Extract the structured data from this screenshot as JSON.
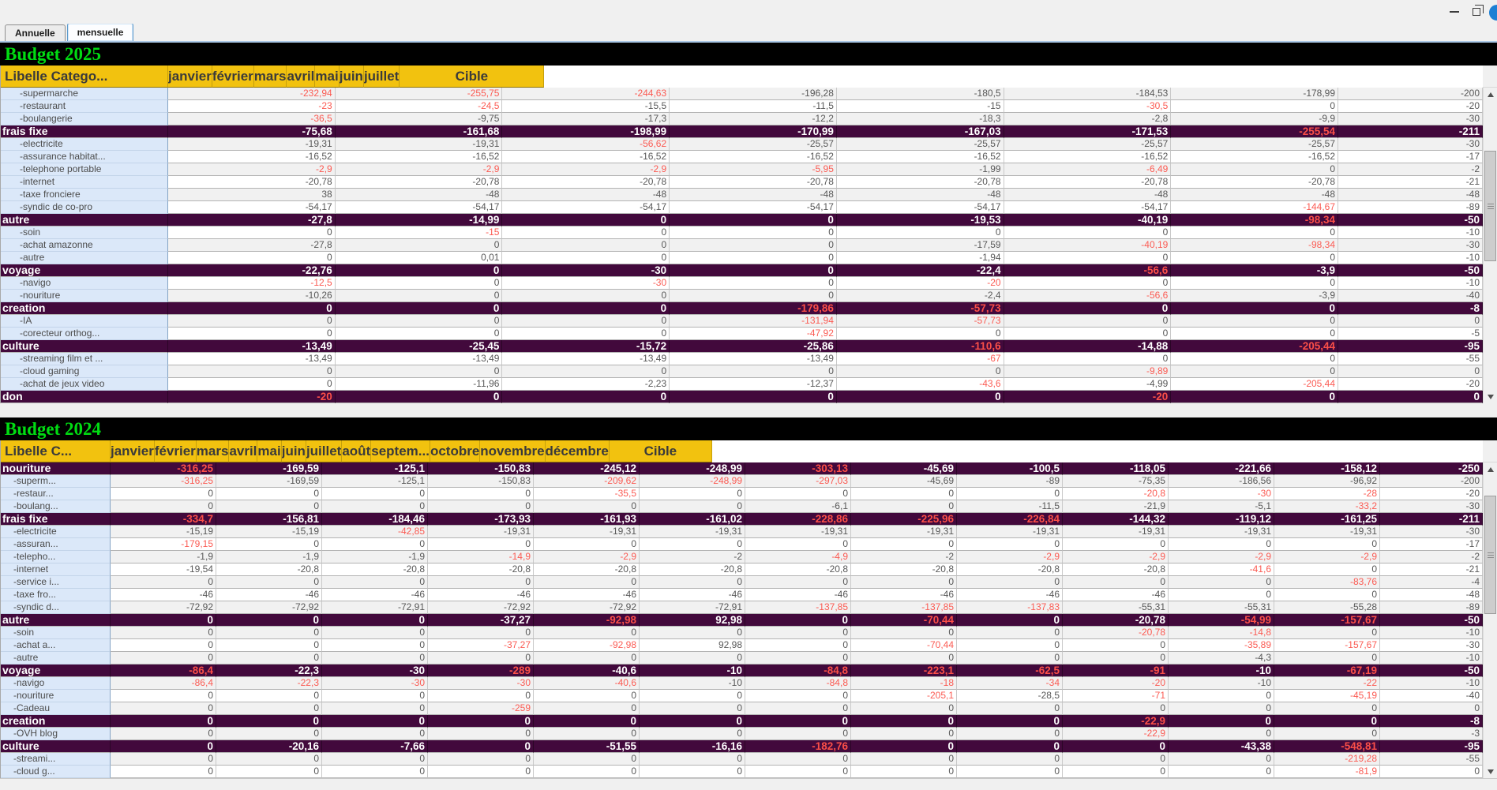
{
  "note_value_format": "cell values prefixed with ! are rendered in alert red",
  "window_controls": {
    "minimize": "minimize",
    "restore": "restore"
  },
  "tabs": [
    {
      "label": "Annuelle",
      "selected": false
    },
    {
      "label": "mensuelle",
      "selected": true
    }
  ],
  "colors": {
    "header_yellow": "#f2c20f",
    "category_purple": "#42093c",
    "alert_red": "#fb5b53",
    "title_green": "#00dc12",
    "label_blue": "#dbe8f9",
    "band_black": "#000000"
  },
  "tables": [
    {
      "title": "Budget 2025",
      "zebra": 0,
      "columns": [
        "Libelle Catego...",
        "janvier",
        "février",
        "mars",
        "avril",
        "mai",
        "juin",
        "juillet",
        "Cible"
      ],
      "rows": [
        {
          "label": "-supermarche",
          "values": [
            "!-232,94",
            "!-255,75",
            "!-244,63",
            "-196,28",
            "-180,5",
            "-184,53",
            "-178,99",
            "-200"
          ]
        },
        {
          "label": "-restaurant",
          "values": [
            "!-23",
            "!-24,5",
            "-15,5",
            "-11,5",
            "-15",
            "!-30,5",
            "0",
            "-20"
          ]
        },
        {
          "label": "-boulangerie",
          "values": [
            "!-36,5",
            "-9,75",
            "-17,3",
            "-12,2",
            "-18,3",
            "-2,8",
            "-9,9",
            "-30"
          ]
        },
        {
          "label": "frais fixe",
          "cat": true,
          "values": [
            "-75,68",
            "-161,68",
            "-198,99",
            "-170,99",
            "-167,03",
            "-171,53",
            "!-255,54",
            "-211"
          ]
        },
        {
          "label": "-electricite",
          "values": [
            "-19,31",
            "-19,31",
            "!-56,62",
            "-25,57",
            "-25,57",
            "-25,57",
            "-25,57",
            "-30"
          ]
        },
        {
          "label": "-assurance habitat...",
          "values": [
            "-16,52",
            "-16,52",
            "-16,52",
            "-16,52",
            "-16,52",
            "-16,52",
            "-16,52",
            "-17"
          ]
        },
        {
          "label": "-telephone portable",
          "values": [
            "!-2,9",
            "!-2,9",
            "!-2,9",
            "!-5,95",
            "-1,99",
            "!-6,49",
            "0",
            "-2"
          ]
        },
        {
          "label": "-internet",
          "values": [
            "-20,78",
            "-20,78",
            "-20,78",
            "-20,78",
            "-20,78",
            "-20,78",
            "-20,78",
            "-21"
          ]
        },
        {
          "label": "-taxe fronciere",
          "values": [
            "38",
            "-48",
            "-48",
            "-48",
            "-48",
            "-48",
            "-48",
            "-48"
          ]
        },
        {
          "label": "-syndic de co-pro",
          "values": [
            "-54,17",
            "-54,17",
            "-54,17",
            "-54,17",
            "-54,17",
            "-54,17",
            "!-144,67",
            "-89"
          ]
        },
        {
          "label": "autre",
          "cat": true,
          "values": [
            "-27,8",
            "-14,99",
            "0",
            "0",
            "-19,53",
            "-40,19",
            "!-98,34",
            "-50"
          ]
        },
        {
          "label": "-soin",
          "values": [
            "0",
            "!-15",
            "0",
            "0",
            "0",
            "0",
            "0",
            "-10"
          ]
        },
        {
          "label": "-achat amazonne",
          "values": [
            "-27,8",
            "0",
            "0",
            "0",
            "-17,59",
            "!-40,19",
            "!-98,34",
            "-30"
          ]
        },
        {
          "label": "-autre",
          "values": [
            "0",
            "0,01",
            "0",
            "0",
            "-1,94",
            "0",
            "0",
            "-10"
          ]
        },
        {
          "label": "voyage",
          "cat": true,
          "values": [
            "-22,76",
            "0",
            "-30",
            "0",
            "-22,4",
            "!-56,6",
            "-3,9",
            "-50"
          ]
        },
        {
          "label": "-navigo",
          "values": [
            "!-12,5",
            "0",
            "!-30",
            "0",
            "!-20",
            "0",
            "0",
            "-10"
          ]
        },
        {
          "label": "-nouriture",
          "values": [
            "-10,26",
            "0",
            "0",
            "0",
            "-2,4",
            "!-56,6",
            "-3,9",
            "-40"
          ]
        },
        {
          "label": "creation",
          "cat": true,
          "values": [
            "0",
            "0",
            "0",
            "!-179,86",
            "!-57,73",
            "0",
            "0",
            "-8"
          ]
        },
        {
          "label": "-IA",
          "values": [
            "0",
            "0",
            "0",
            "!-131,94",
            "!-57,73",
            "0",
            "0",
            "0"
          ]
        },
        {
          "label": "-corecteur orthog...",
          "values": [
            "0",
            "0",
            "0",
            "!-47,92",
            "0",
            "0",
            "0",
            "-5"
          ]
        },
        {
          "label": "culture",
          "cat": true,
          "values": [
            "-13,49",
            "-25,45",
            "-15,72",
            "-25,86",
            "!-110,6",
            "-14,88",
            "!-205,44",
            "-95"
          ]
        },
        {
          "label": "-streaming film et ...",
          "values": [
            "-13,49",
            "-13,49",
            "-13,49",
            "-13,49",
            "!-67",
            "0",
            "0",
            "-55"
          ]
        },
        {
          "label": "-cloud gaming",
          "values": [
            "0",
            "0",
            "0",
            "0",
            "0",
            "!-9,89",
            "0",
            "0"
          ]
        },
        {
          "label": "-achat de jeux video",
          "values": [
            "0",
            "-11,96",
            "-2,23",
            "-12,37",
            "!-43,6",
            "-4,99",
            "!-205,44",
            "-20"
          ]
        },
        {
          "label": "don",
          "cat": true,
          "values": [
            "!-20",
            "0",
            "0",
            "0",
            "0",
            "!-20",
            "0",
            "0"
          ]
        }
      ]
    },
    {
      "title": "Budget 2024",
      "zebra": 1,
      "columns": [
        "Libelle C...",
        "janvier",
        "février",
        "mars",
        "avril",
        "mai",
        "juin",
        "juillet",
        "août",
        "septem...",
        "octobre",
        "novembre",
        "décembre",
        "Cible"
      ],
      "rows": [
        {
          "label": "nouriture",
          "cat": true,
          "values": [
            "!-316,25",
            "-169,59",
            "-125,1",
            "-150,83",
            "-245,12",
            "-248,99",
            "!-303,13",
            "-45,69",
            "-100,5",
            "-118,05",
            "-221,66",
            "-158,12",
            "-250"
          ]
        },
        {
          "label": "-superm...",
          "values": [
            "!-316,25",
            "-169,59",
            "-125,1",
            "-150,83",
            "!-209,62",
            "!-248,99",
            "!-297,03",
            "-45,69",
            "-89",
            "-75,35",
            "-186,56",
            "-96,92",
            "-200"
          ]
        },
        {
          "label": "-restaur...",
          "values": [
            "0",
            "0",
            "0",
            "0",
            "!-35,5",
            "0",
            "0",
            "0",
            "0",
            "!-20,8",
            "!-30",
            "!-28",
            "-20"
          ]
        },
        {
          "label": "-boulang...",
          "values": [
            "0",
            "0",
            "0",
            "0",
            "0",
            "0",
            "-6,1",
            "0",
            "-11,5",
            "-21,9",
            "-5,1",
            "!-33,2",
            "-30"
          ]
        },
        {
          "label": "frais fixe",
          "cat": true,
          "values": [
            "!-334,7",
            "-156,81",
            "-184,46",
            "-173,93",
            "-161,93",
            "-161,02",
            "!-228,86",
            "!-225,96",
            "!-226,84",
            "-144,32",
            "-119,12",
            "-161,25",
            "-211"
          ]
        },
        {
          "label": "-electricite",
          "values": [
            "-15,19",
            "-15,19",
            "!-42,85",
            "-19,31",
            "-19,31",
            "-19,31",
            "-19,31",
            "-19,31",
            "-19,31",
            "-19,31",
            "-19,31",
            "-19,31",
            "-30"
          ]
        },
        {
          "label": "-assuran...",
          "values": [
            "!-179,15",
            "0",
            "0",
            "0",
            "0",
            "0",
            "0",
            "0",
            "0",
            "0",
            "0",
            "0",
            "-17"
          ]
        },
        {
          "label": "-telepho...",
          "values": [
            "-1,9",
            "-1,9",
            "-1,9",
            "!-14,9",
            "!-2,9",
            "-2",
            "!-4,9",
            "-2",
            "!-2,9",
            "!-2,9",
            "!-2,9",
            "!-2,9",
            "-2"
          ]
        },
        {
          "label": "-internet",
          "values": [
            "-19,54",
            "-20,8",
            "-20,8",
            "-20,8",
            "-20,8",
            "-20,8",
            "-20,8",
            "-20,8",
            "-20,8",
            "-20,8",
            "!-41,6",
            "0",
            "-21"
          ]
        },
        {
          "label": "-service i...",
          "values": [
            "0",
            "0",
            "0",
            "0",
            "0",
            "0",
            "0",
            "0",
            "0",
            "0",
            "0",
            "!-83,76",
            "-4"
          ]
        },
        {
          "label": "-taxe fro...",
          "values": [
            "-46",
            "-46",
            "-46",
            "-46",
            "-46",
            "-46",
            "-46",
            "-46",
            "-46",
            "-46",
            "0",
            "0",
            "-48"
          ]
        },
        {
          "label": "-syndic d...",
          "values": [
            "-72,92",
            "-72,92",
            "-72,91",
            "-72,92",
            "-72,92",
            "-72,91",
            "!-137,85",
            "!-137,85",
            "!-137,83",
            "-55,31",
            "-55,31",
            "-55,28",
            "-89"
          ]
        },
        {
          "label": "autre",
          "cat": true,
          "values": [
            "0",
            "0",
            "0",
            "-37,27",
            "!-92,98",
            "92,98",
            "0",
            "!-70,44",
            "0",
            "-20,78",
            "!-54,99",
            "!-157,67",
            "-50"
          ]
        },
        {
          "label": "-soin",
          "values": [
            "0",
            "0",
            "0",
            "0",
            "0",
            "0",
            "0",
            "0",
            "0",
            "!-20,78",
            "!-14,8",
            "0",
            "-10"
          ]
        },
        {
          "label": "-achat a...",
          "values": [
            "0",
            "0",
            "0",
            "!-37,27",
            "!-92,98",
            "92,98",
            "0",
            "!-70,44",
            "0",
            "0",
            "!-35,89",
            "!-157,67",
            "-30"
          ]
        },
        {
          "label": "-autre",
          "values": [
            "0",
            "0",
            "0",
            "0",
            "0",
            "0",
            "0",
            "0",
            "0",
            "0",
            "-4,3",
            "0",
            "-10"
          ]
        },
        {
          "label": "voyage",
          "cat": true,
          "values": [
            "!-86,4",
            "-22,3",
            "-30",
            "!-289",
            "-40,6",
            "-10",
            "!-84,8",
            "!-223,1",
            "!-62,5",
            "!-91",
            "-10",
            "!-67,19",
            "-50"
          ]
        },
        {
          "label": "-navigo",
          "values": [
            "!-86,4",
            "!-22,3",
            "!-30",
            "!-30",
            "!-40,6",
            "-10",
            "!-84,8",
            "!-18",
            "!-34",
            "!-20",
            "-10",
            "!-22",
            "-10"
          ]
        },
        {
          "label": "-nouriture",
          "values": [
            "0",
            "0",
            "0",
            "0",
            "0",
            "0",
            "0",
            "!-205,1",
            "-28,5",
            "!-71",
            "0",
            "!-45,19",
            "-40"
          ]
        },
        {
          "label": "-Cadeau",
          "values": [
            "0",
            "0",
            "0",
            "!-259",
            "0",
            "0",
            "0",
            "0",
            "0",
            "0",
            "0",
            "0",
            "0"
          ]
        },
        {
          "label": "creation",
          "cat": true,
          "values": [
            "0",
            "0",
            "0",
            "0",
            "0",
            "0",
            "0",
            "0",
            "0",
            "!-22,9",
            "0",
            "0",
            "-8"
          ]
        },
        {
          "label": "-OVH blog",
          "values": [
            "0",
            "0",
            "0",
            "0",
            "0",
            "0",
            "0",
            "0",
            "0",
            "!-22,9",
            "0",
            "0",
            "-3"
          ]
        },
        {
          "label": "culture",
          "cat": true,
          "values": [
            "0",
            "-20,16",
            "-7,66",
            "0",
            "-51,55",
            "-16,16",
            "!-182,76",
            "0",
            "0",
            "0",
            "-43,38",
            "!-548,81",
            "-95"
          ]
        },
        {
          "label": "-streami...",
          "values": [
            "0",
            "0",
            "0",
            "0",
            "0",
            "0",
            "0",
            "0",
            "0",
            "0",
            "0",
            "!-219,28",
            "-55"
          ]
        },
        {
          "label": "-cloud g...",
          "values": [
            "0",
            "0",
            "0",
            "0",
            "0",
            "0",
            "0",
            "0",
            "0",
            "0",
            "0",
            "!-81,9",
            "0"
          ]
        }
      ]
    }
  ]
}
